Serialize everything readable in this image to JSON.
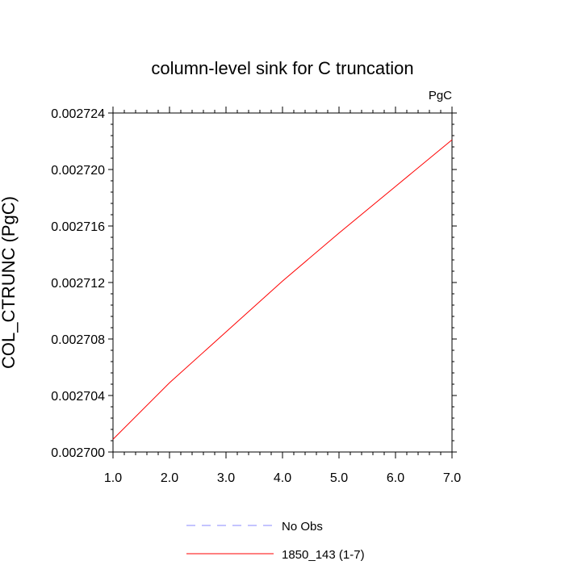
{
  "chart_data": {
    "type": "line",
    "title": "column-level sink for C truncation",
    "units_label": "PgC",
    "ylabel": "COL_CTRUNC  (PgC)",
    "xlabel": "",
    "xlim": [
      1.0,
      7.0
    ],
    "ylim": [
      0.0027,
      0.002724
    ],
    "x_ticks": [
      1.0,
      2.0,
      3.0,
      4.0,
      5.0,
      6.0,
      7.0
    ],
    "x_tick_labels": [
      "1.0",
      "2.0",
      "3.0",
      "4.0",
      "5.0",
      "6.0",
      "7.0"
    ],
    "y_ticks": [
      0.0027,
      0.002704,
      0.002708,
      0.002712,
      0.002716,
      0.00272,
      0.002724
    ],
    "y_tick_labels": [
      "0.002700",
      "0.002704",
      "0.002708",
      "0.002712",
      "0.002716",
      "0.002720",
      "0.002724"
    ],
    "grid": false,
    "legend_position": "bottom-center",
    "series": [
      {
        "name": "No Obs",
        "color": "#8888ff",
        "dash": "dashed",
        "x": [],
        "values": []
      },
      {
        "name": "1850_143 (1-7)",
        "color": "#ff0000",
        "dash": "solid",
        "x": [
          1,
          2,
          3,
          4,
          5,
          6,
          7
        ],
        "values": [
          0.0027009,
          0.0027049,
          0.0027085,
          0.0027121,
          0.0027155,
          0.0027188,
          0.0027221
        ]
      }
    ]
  }
}
